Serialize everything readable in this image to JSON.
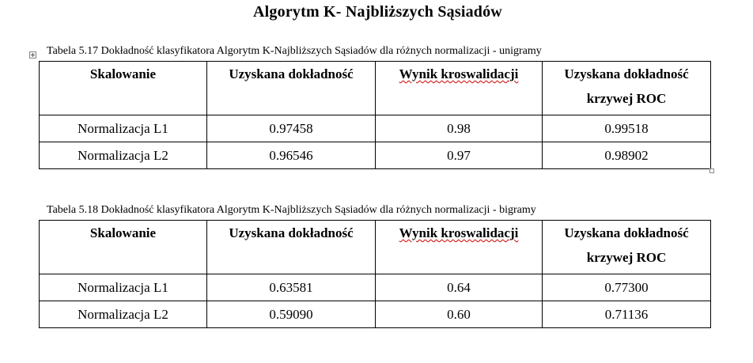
{
  "title": "Algorytm K- Najbliższych Sąsiadów",
  "tables": [
    {
      "caption": "Tabela 5.17 Dokładność klasyfikatora Algorytm K-Najbliższych Sąsiadów dla różnych normalizacji - unigramy",
      "headers": [
        "Skalowanie",
        "Uzyskana dokładność",
        "Wynik kroswalidacji",
        "Uzyskana dokładność krzywej ROC"
      ],
      "header_last_line1": "Uzyskana dokładność",
      "header_last_line2": "krzywej ROC",
      "rows": [
        [
          "Normalizacja L1",
          "0.97458",
          "0.98",
          "0.99518"
        ],
        [
          "Normalizacja L2",
          "0.96546",
          "0.97",
          "0.98902"
        ]
      ]
    },
    {
      "caption": "Tabela 5.18 Dokładność klasyfikatora Algorytm K-Najbliższych Sąsiadów dla różnych normalizacji - bigramy",
      "headers": [
        "Skalowanie",
        "Uzyskana dokładność",
        "Wynik kroswalidacji",
        "Uzyskana dokładność krzywej ROC"
      ],
      "header_last_line1": "Uzyskana dokładność",
      "header_last_line2": "krzywej ROC",
      "rows": [
        [
          "Normalizacja L1",
          "0.63581",
          "0.64",
          "0.77300"
        ],
        [
          "Normalizacja L2",
          "0.59090",
          "0.60",
          "0.71136"
        ]
      ]
    }
  ],
  "icons": {
    "table_anchor": "table-move-handle-icon",
    "table_resize": "table-resize-handle-icon"
  },
  "colors": {
    "text": "#000000",
    "border": "#000000",
    "spellcheck": "#d00000"
  }
}
